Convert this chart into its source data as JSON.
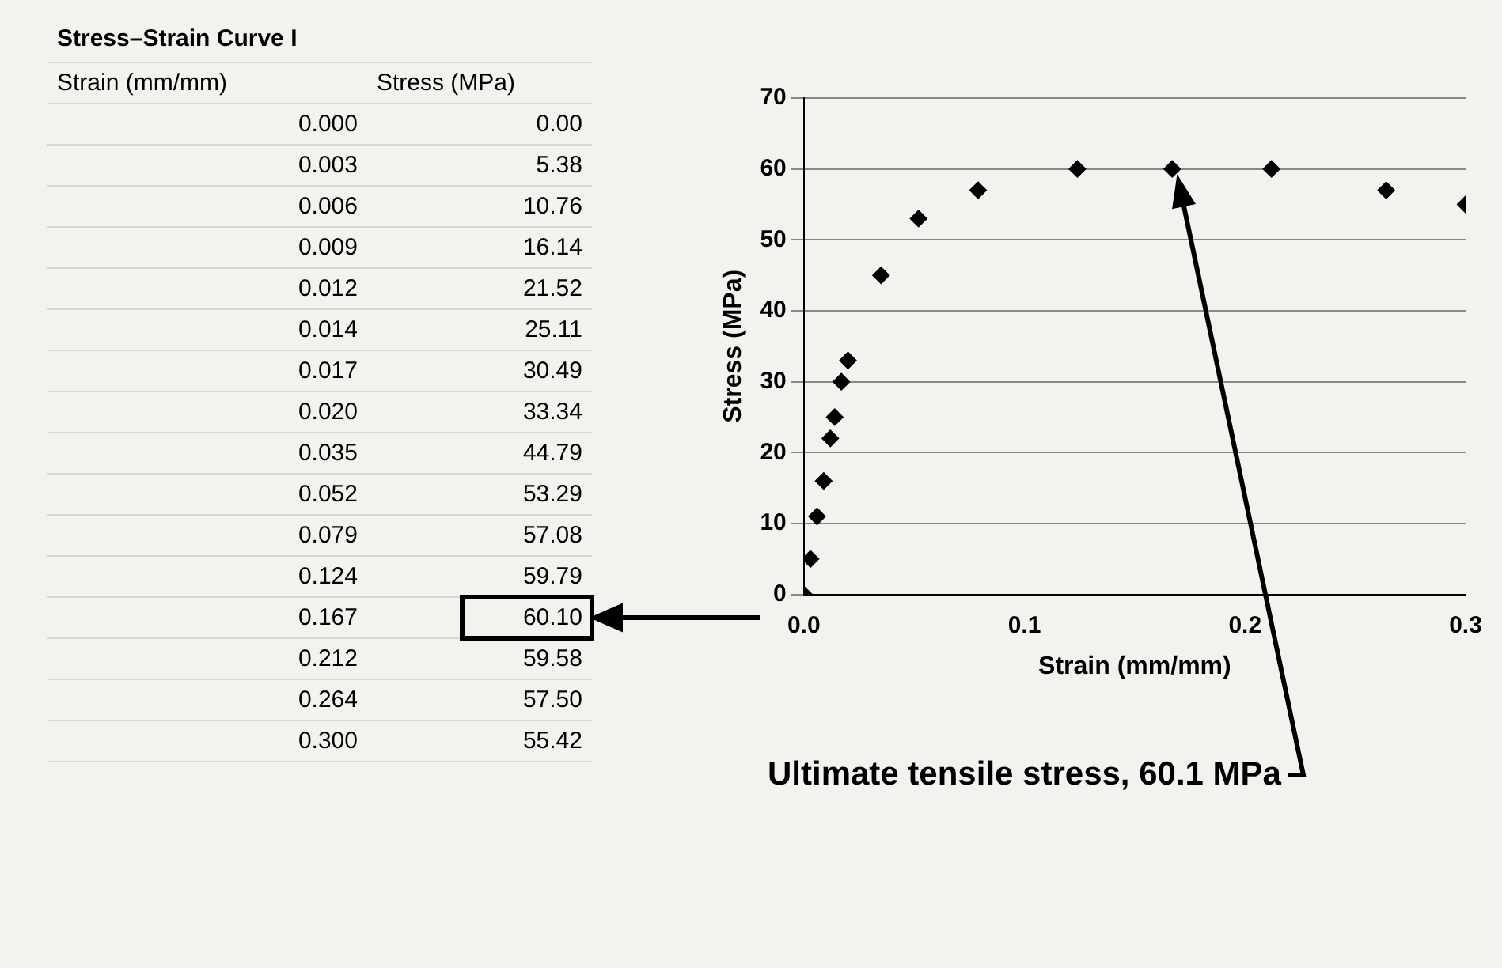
{
  "chart_data": [
    {
      "type": "other",
      "title": "Stress–Strain Curve I",
      "xlabel": "Strain (mm/mm)",
      "ylabel": "Stress (MPa)",
      "annotations": [
        "0.00",
        "5.38",
        "10.76",
        "16.14",
        "21.52",
        "25.11",
        "30.49",
        "33.34",
        "44.79",
        "53.29",
        "57.08",
        "59.79",
        "60.10",
        "59.58",
        "57.50",
        "55.42"
      ],
      "categories": [
        "0.000",
        "0.003",
        "0.006",
        "0.009",
        "0.012",
        "0.014",
        "0.017",
        "0.020",
        "0.035",
        "0.052",
        "0.079",
        "0.124",
        "0.167",
        "0.212",
        "0.264",
        "0.300"
      ]
    },
    {
      "type": "scatter",
      "xlabel": "Strain (mm/mm)",
      "ylabel": "Stress (MPa)",
      "x": [
        0.0,
        0.003,
        0.006,
        0.009,
        0.012,
        0.014,
        0.017,
        0.02,
        0.035,
        0.052,
        0.079,
        0.124,
        0.167,
        0.212,
        0.264,
        0.3
      ],
      "series": [
        {
          "color": "#000000",
          "values": [
            0,
            5,
            11,
            16,
            22,
            25,
            30,
            33,
            45,
            53,
            57,
            60,
            60,
            60,
            57,
            55
          ]
        }
      ],
      "xlim": [
        0,
        0.3
      ],
      "xticks": [
        {
          "value": 0,
          "label": "0.0"
        },
        0.1,
        0.2,
        0.3
      ],
      "ylim": [
        0,
        70
      ],
      "yticks": [
        0,
        10,
        20,
        30,
        40,
        50,
        60,
        70
      ],
      "grid": "y",
      "legend": false,
      "marker": "diamond",
      "annotations": [
        {
          "text": "Ultimate tensile stress, 60.1 MPa",
          "x": 0.167,
          "y": 60.1
        }
      ]
    }
  ]
}
